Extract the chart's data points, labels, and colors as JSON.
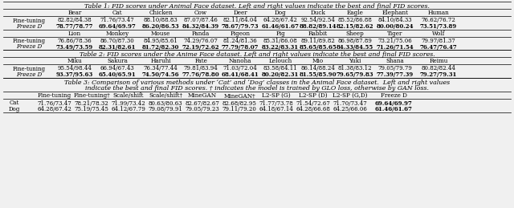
{
  "table1_title": "Table 1: FID scores under Animal Face dataset. Left and right values indicate the best and final FID scores.",
  "table1_cols": [
    "",
    "Bear",
    "Cat",
    "Chicken",
    "Cow",
    "Deer",
    "Dog",
    "Duck",
    "Eagle",
    "Elephant",
    "Human"
  ],
  "table1_row1_label": "Fine-tuning",
  "table1_row2_label": "Freeze D",
  "table1_data_row1a": [
    "82.82/84.38",
    "71.76/73.47",
    "88.10/88.83",
    "87.07/87.46",
    "82.11/84.04",
    "64.28/67.42",
    "92.54/92.54",
    "85.52/86.88",
    "84.10/84.33",
    "76.62/76.72"
  ],
  "table1_data_row2a": [
    "78.77/78.77",
    "69.64/69.97",
    "86.20/86.53",
    "84.32/84.39",
    "78.67/79.73",
    "61.46/61.67",
    "88.82/89.14",
    "82.15/82.62",
    "80.00/80.24",
    "73.51/73.89"
  ],
  "table1_cols2": [
    "",
    "Lion",
    "Monkey",
    "Mouse",
    "Panda",
    "Pigeon",
    "Pig",
    "Rabbit",
    "Sheep",
    "Tiger",
    "Wolf"
  ],
  "table1_data_row1b": [
    "76.86/78.36",
    "86.70/87.30",
    "84.95/85.61",
    "74.29/76.07",
    "81.24/81.36",
    "85.31/86.08",
    "89.11/89.82",
    "86.98/87.89",
    "73.21/75.06",
    "79.97/81.37"
  ],
  "table1_data_row2b": [
    "73.49/73.59",
    "82.31/82.61",
    "81.72/82.30",
    "72.19/72.62",
    "77.79/78.07",
    "83.22/83.31",
    "85.65/85.65",
    "84.33/84.55",
    "71.26/71.54",
    "76.47/76.47"
  ],
  "table2_title": "Table 2: FID scores under the Anime Face dataset. Left and right values indicate the best and final FID scores.",
  "table2_cols": [
    "",
    "Miku",
    "Sakura",
    "Haruhi",
    "Fate",
    "Nanoha",
    "Lelouch",
    "Mio",
    "Yuki",
    "Shana",
    "Reimu"
  ],
  "table2_row1_label": "Fine-tuning",
  "table2_row2_label": "Freeze D",
  "table2_data_row1": [
    "95.54/98.44",
    "66.94/67.43",
    "76.34/77.44",
    "79.81/83.94",
    "71.03/72.04",
    "83.58/84.11",
    "86.14/88.24",
    "81.38/83.12",
    "79.05/79.79",
    "80.82/82.44"
  ],
  "table2_data_row2": [
    "93.37/95.63",
    "65.40/65.91",
    "74.50/74.56",
    "77.76/78.80",
    "68.41/68.41",
    "80.20/82.31",
    "81.55/85.90",
    "79.65/79.83",
    "77.39/77.39",
    "79.27/79.31"
  ],
  "table3_title": "Table 3: Comparison of various methods under ‘Cat’ and ‘Dog’ classes in the Animal Face dataset.  Left and right values indicate the best and final FID scores. † indicates the model is trained by GLO loss, otherwise by GAN loss.",
  "table3_cols": [
    "",
    "Fine-tuning",
    "Fine-tuning†",
    "Scale/shift",
    "Scale/shift†",
    "MineGAN",
    "MineGAN†",
    "L2-SP (G)",
    "L2-SP (D)",
    "L2-SP (G,D)",
    "Freeze D"
  ],
  "table3_row1_label": "Cat",
  "table3_row2_label": "Dog",
  "table3_data_row1": [
    "71.76/73.47",
    "78.21/78.32",
    "71.99/73.42",
    "80.63/80.63",
    "82.67/82.67",
    "82.68/82.95",
    "71.77/73.78",
    "71.54/72.67",
    "71.70/73.47",
    "69.64/69.97"
  ],
  "table3_data_row2": [
    "64.28/67.42",
    "75.19/75.45",
    "64.12/67.79",
    "79.08/79.91",
    "79.05/79.23",
    "79.11/79.20",
    "64.18/67.14",
    "64.28/66.68",
    "64.25/66.06",
    "61.46/61.67"
  ],
  "bg_color": "#f0f0f0",
  "fontsize_title": 5.7,
  "fontsize_cell": 5.0,
  "fontsize_header": 5.2,
  "t1_x": [
    36,
    93,
    146,
    200,
    250,
    299,
    349,
    396,
    442,
    492,
    546,
    606
  ],
  "t3_x": [
    18,
    68,
    114,
    160,
    206,
    252,
    298,
    344,
    390,
    436,
    490,
    562
  ]
}
